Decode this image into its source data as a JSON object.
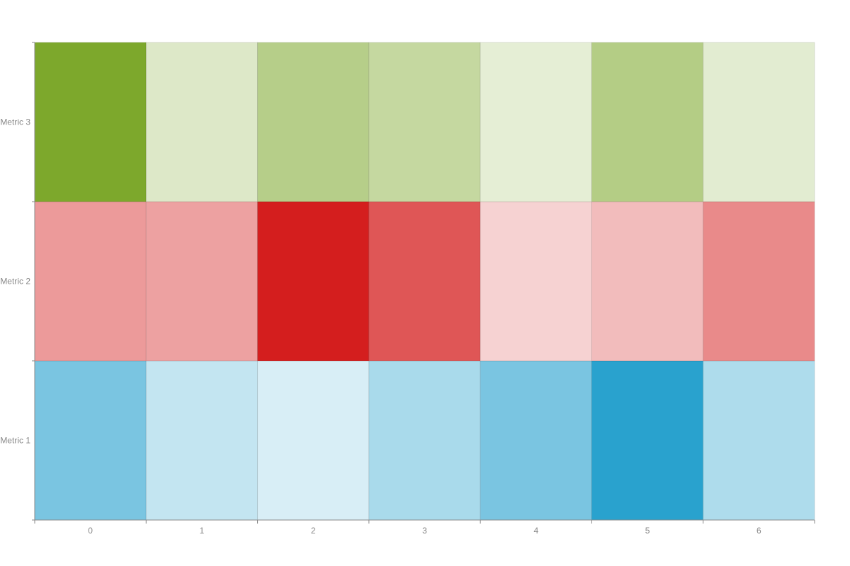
{
  "chart_data": {
    "type": "heatmap",
    "x_categories": [
      "0",
      "1",
      "2",
      "3",
      "4",
      "5",
      "6"
    ],
    "y_categories": [
      "Metric 1",
      "Metric 2",
      "Metric 3"
    ],
    "series": [
      {
        "name": "Metric 1",
        "color": "#29a2ce",
        "values": [
          0.62,
          0.28,
          0.18,
          0.4,
          0.62,
          1.0,
          0.38
        ]
      },
      {
        "name": "Metric 2",
        "color": "#d41e1e",
        "values": [
          0.45,
          0.42,
          1.0,
          0.75,
          0.2,
          0.3,
          0.52
        ]
      },
      {
        "name": "Metric 3",
        "color": "#7da82c",
        "values": [
          1.0,
          0.26,
          0.56,
          0.45,
          0.2,
          0.58,
          0.22
        ]
      }
    ],
    "title": "",
    "xlabel": "",
    "ylabel": "",
    "grid": false,
    "legend": "none"
  }
}
